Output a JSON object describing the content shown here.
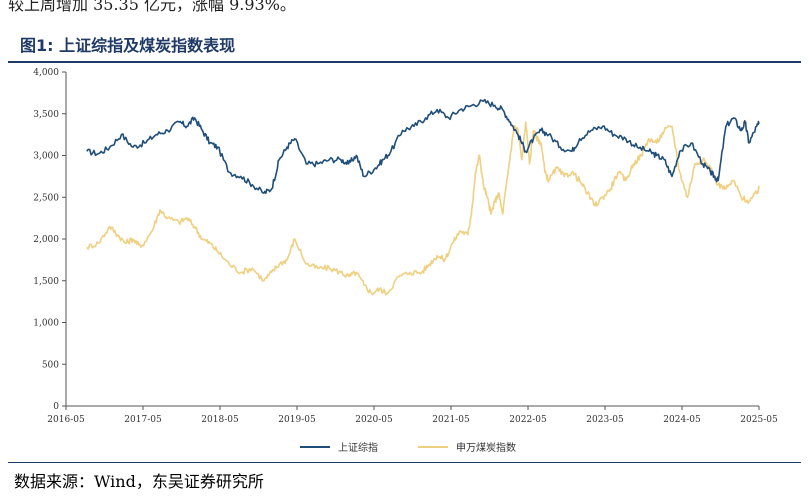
{
  "lead_text": "较上周增加 35.35 亿元，涨幅 9.93%。",
  "figure_title": "图1:  上证综指及煤炭指数表现",
  "source": "数据来源：Wind，东吴证券研究所",
  "colors": {
    "series1": "#1f4e7a",
    "series2": "#f0d080",
    "rule": "#1f3a66",
    "axis": "#555555"
  },
  "chart_data": {
    "type": "line",
    "title": "上证综指及煤炭指数表现",
    "xlabel": "",
    "ylabel": "",
    "ylim": [
      0,
      4000
    ],
    "yticks": [
      0,
      500,
      1000,
      1500,
      2000,
      2500,
      3000,
      3500,
      4000
    ],
    "ytick_labels": [
      "0",
      "500",
      "1,000",
      "1,500",
      "2,000",
      "2,500",
      "3,000",
      "3,500",
      "4,000"
    ],
    "x_range": [
      2016.33,
      2025.33
    ],
    "xticks": [
      2016.33,
      2017.33,
      2018.33,
      2019.33,
      2020.33,
      2021.33,
      2022.33,
      2023.33,
      2024.33,
      2025.33
    ],
    "xtick_labels": [
      "2016-05",
      "2017-05",
      "2018-05",
      "2019-05",
      "2020-05",
      "2021-05",
      "2022-05",
      "2023-05",
      "2024-05",
      "2025-05"
    ],
    "legend_position": "bottom",
    "series": [
      {
        "name": "上证综指",
        "x": [
          2016.6,
          2016.75,
          2016.9,
          2017.05,
          2017.2,
          2017.35,
          2017.5,
          2017.65,
          2017.8,
          2017.9,
          2018.0,
          2018.1,
          2018.2,
          2018.3,
          2018.45,
          2018.6,
          2018.75,
          2018.9,
          2019.0,
          2019.1,
          2019.2,
          2019.3,
          2019.45,
          2019.6,
          2019.75,
          2019.9,
          2020.0,
          2020.1,
          2020.2,
          2020.35,
          2020.45,
          2020.55,
          2020.7,
          2020.85,
          2021.0,
          2021.15,
          2021.3,
          2021.45,
          2021.6,
          2021.75,
          2021.9,
          2022.0,
          2022.1,
          2022.2,
          2022.3,
          2022.4,
          2022.5,
          2022.6,
          2022.75,
          2022.9,
          2023.0,
          2023.15,
          2023.3,
          2023.45,
          2023.6,
          2023.75,
          2023.9,
          2024.0,
          2024.1,
          2024.2,
          2024.3,
          2024.45,
          2024.6,
          2024.7,
          2024.75,
          2024.8,
          2024.9,
          2025.0,
          2025.1,
          2025.15,
          2025.2,
          2025.3,
          2025.33
        ],
        "values": [
          3050,
          3020,
          3100,
          3250,
          3100,
          3150,
          3250,
          3300,
          3400,
          3350,
          3450,
          3300,
          3150,
          3100,
          2800,
          2750,
          2650,
          2550,
          2600,
          2950,
          3100,
          3200,
          2900,
          2900,
          2950,
          2950,
          2900,
          3000,
          2750,
          2850,
          2950,
          3050,
          3300,
          3350,
          3450,
          3550,
          3450,
          3550,
          3600,
          3650,
          3600,
          3550,
          3400,
          3250,
          3050,
          3200,
          3300,
          3250,
          3100,
          3050,
          3200,
          3300,
          3350,
          3250,
          3200,
          3100,
          3050,
          3000,
          2950,
          2750,
          3050,
          3150,
          2900,
          2800,
          2750,
          2700,
          3350,
          3450,
          3300,
          3400,
          3150,
          3350,
          3380
        ]
      },
      {
        "name": "申万煤炭指数",
        "x": [
          2016.6,
          2016.75,
          2016.9,
          2017.0,
          2017.1,
          2017.2,
          2017.3,
          2017.45,
          2017.55,
          2017.65,
          2017.8,
          2017.9,
          2018.0,
          2018.1,
          2018.2,
          2018.3,
          2018.45,
          2018.6,
          2018.75,
          2018.9,
          2019.0,
          2019.1,
          2019.2,
          2019.3,
          2019.45,
          2019.6,
          2019.75,
          2019.9,
          2020.0,
          2020.1,
          2020.2,
          2020.3,
          2020.4,
          2020.5,
          2020.65,
          2020.8,
          2020.95,
          2021.05,
          2021.15,
          2021.25,
          2021.35,
          2021.45,
          2021.55,
          2021.6,
          2021.65,
          2021.7,
          2021.75,
          2021.8,
          2021.85,
          2021.9,
          2021.95,
          2022.0,
          2022.05,
          2022.1,
          2022.15,
          2022.2,
          2022.25,
          2022.3,
          2022.35,
          2022.4,
          2022.45,
          2022.5,
          2022.55,
          2022.6,
          2022.7,
          2022.8,
          2022.9,
          2023.0,
          2023.1,
          2023.2,
          2023.3,
          2023.4,
          2023.5,
          2023.6,
          2023.7,
          2023.8,
          2023.9,
          2024.0,
          2024.1,
          2024.2,
          2024.3,
          2024.4,
          2024.5,
          2024.6,
          2024.7,
          2024.8,
          2024.9,
          2025.0,
          2025.1,
          2025.2,
          2025.3,
          2025.33
        ],
        "values": [
          1900,
          1950,
          2150,
          2050,
          1950,
          2000,
          1900,
          2100,
          2350,
          2250,
          2200,
          2250,
          2150,
          2000,
          1950,
          1850,
          1700,
          1600,
          1650,
          1500,
          1600,
          1700,
          1750,
          2000,
          1700,
          1650,
          1650,
          1600,
          1550,
          1600,
          1450,
          1350,
          1400,
          1350,
          1550,
          1600,
          1600,
          1700,
          1800,
          1750,
          1950,
          2100,
          2050,
          2350,
          2800,
          3000,
          2650,
          2500,
          2300,
          2450,
          2550,
          2300,
          2650,
          3000,
          3350,
          3300,
          2950,
          3400,
          2900,
          3300,
          3200,
          3150,
          2800,
          2700,
          2850,
          2750,
          2800,
          2700,
          2550,
          2400,
          2500,
          2600,
          2800,
          2700,
          2900,
          3000,
          3200,
          3150,
          3300,
          3350,
          2800,
          2500,
          2900,
          2950,
          2850,
          2650,
          2600,
          2700,
          2500,
          2450,
          2550,
          2600
        ]
      }
    ]
  }
}
